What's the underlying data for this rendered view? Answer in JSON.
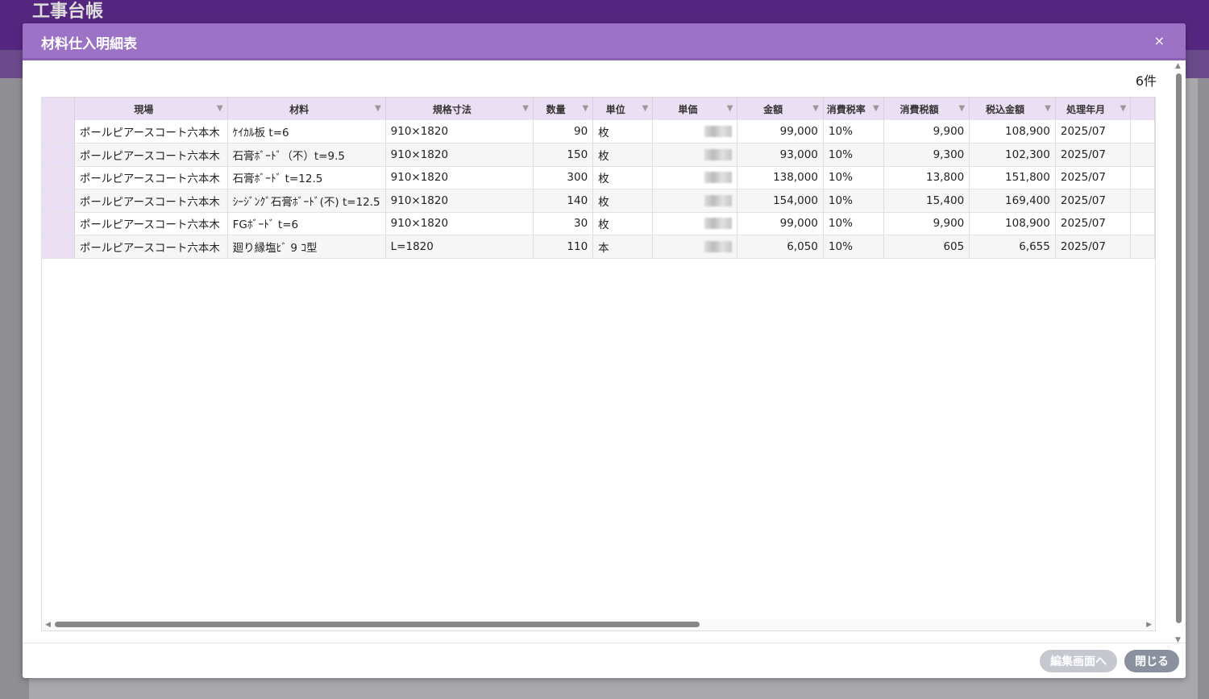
{
  "app": {
    "logo": "工事台帳"
  },
  "modal": {
    "title": "材料仕入明細表",
    "close_icon": "×",
    "count": "6件"
  },
  "table": {
    "columns": [
      "現場",
      "材料",
      "規格寸法",
      "数量",
      "単位",
      "単価",
      "金額",
      "消費税率",
      "消費税額",
      "税込金額",
      "処理年月"
    ],
    "rows": [
      [
        "ポールピアースコート六本木",
        "ｹｲｶﾙ板 t=6",
        "910×1820",
        "90",
        "枚",
        "",
        "99,000",
        "10%",
        "9,900",
        "108,900",
        "2025/07"
      ],
      [
        "ポールピアースコート六本木",
        "石膏ﾎﾞｰﾄﾞ（不）t=9.5",
        "910×1820",
        "150",
        "枚",
        "",
        "93,000",
        "10%",
        "9,300",
        "102,300",
        "2025/07"
      ],
      [
        "ポールピアースコート六本木",
        "石膏ﾎﾞｰﾄﾞ t=12.5",
        "910×1820",
        "300",
        "枚",
        "",
        "138,000",
        "10%",
        "13,800",
        "151,800",
        "2025/07"
      ],
      [
        "ポールピアースコート六本木",
        "ｼｰｼﾞﾝｸﾞ石膏ﾎﾞｰﾄﾞ(不) t=12.5",
        "910×1820",
        "140",
        "枚",
        "",
        "154,000",
        "10%",
        "15,400",
        "169,400",
        "2025/07"
      ],
      [
        "ポールピアースコート六本木",
        "FGﾎﾞｰﾄﾞ t=6",
        "910×1820",
        "30",
        "枚",
        "",
        "99,000",
        "10%",
        "9,900",
        "108,900",
        "2025/07"
      ],
      [
        "ポールピアースコート六本木",
        "廻り縁塩ﾋﾞ 9 ｺ型",
        "L=1820",
        "110",
        "本",
        "",
        "6,050",
        "10%",
        "605",
        "6,655",
        "2025/07"
      ]
    ]
  },
  "footer": {
    "edit_label": "編集画面へ",
    "close_label": "閉じる"
  }
}
